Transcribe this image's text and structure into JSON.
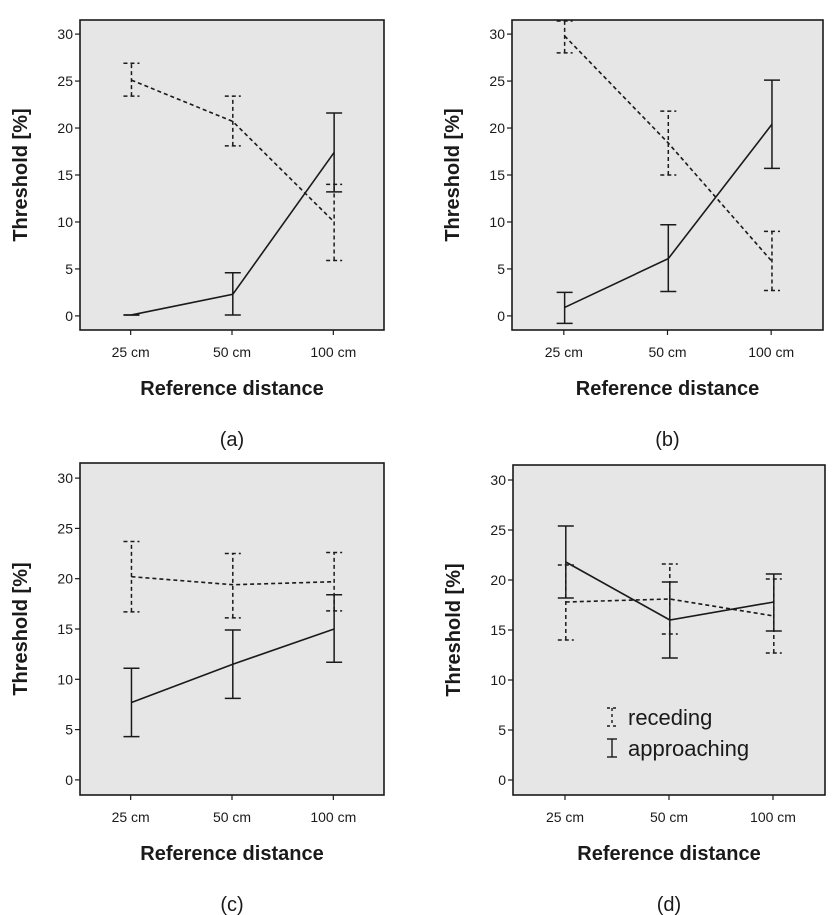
{
  "chart_data": [
    {
      "type": "line",
      "panel_label": "(a)",
      "xlabel": "Reference distance",
      "ylabel": "Threshold [%]",
      "categories": [
        "25 cm",
        "50 cm",
        "100 cm"
      ],
      "yticks": [
        0,
        5,
        10,
        15,
        20,
        25,
        30
      ],
      "ylim": [
        -1.5,
        31.5
      ],
      "grid": false,
      "legend": null,
      "series": [
        {
          "style": "dashed",
          "values": [
            25.1,
            20.7,
            10.0
          ],
          "err_low": [
            23.4,
            18.1,
            5.9
          ],
          "err_high": [
            26.9,
            23.4,
            14.0
          ]
        },
        {
          "style": "solid",
          "values": [
            0.1,
            2.3,
            17.4
          ],
          "err_low": [
            0.1,
            0.1,
            13.2
          ],
          "err_high": [
            0.1,
            4.6,
            21.6
          ]
        }
      ]
    },
    {
      "type": "line",
      "panel_label": "(b)",
      "xlabel": "Reference distance",
      "ylabel": "Threshold [%]",
      "categories": [
        "25 cm",
        "50 cm",
        "100 cm"
      ],
      "yticks": [
        0,
        5,
        10,
        15,
        20,
        25,
        30
      ],
      "ylim": [
        -1.5,
        31.5
      ],
      "grid": false,
      "legend": null,
      "series": [
        {
          "style": "dashed",
          "values": [
            29.8,
            18.4,
            5.8
          ],
          "err_low": [
            28.0,
            15.0,
            2.7
          ],
          "err_high": [
            31.4,
            21.8,
            9.0
          ]
        },
        {
          "style": "solid",
          "values": [
            0.9,
            6.1,
            20.4
          ],
          "err_low": [
            -0.8,
            2.6,
            15.7
          ],
          "err_high": [
            2.5,
            9.7,
            25.1
          ]
        }
      ]
    },
    {
      "type": "line",
      "panel_label": "(c)",
      "xlabel": "Reference distance",
      "ylabel": "Threshold [%]",
      "categories": [
        "25 cm",
        "50 cm",
        "100 cm"
      ],
      "yticks": [
        0,
        5,
        10,
        15,
        20,
        25,
        30
      ],
      "ylim": [
        -1.5,
        31.5
      ],
      "grid": false,
      "legend": null,
      "series": [
        {
          "style": "dashed",
          "values": [
            20.2,
            19.4,
            19.7
          ],
          "err_low": [
            16.7,
            16.1,
            16.8
          ],
          "err_high": [
            23.7,
            22.5,
            22.6
          ]
        },
        {
          "style": "solid",
          "values": [
            7.7,
            11.5,
            15.0
          ],
          "err_low": [
            4.3,
            8.1,
            11.7
          ],
          "err_high": [
            11.1,
            14.9,
            18.4
          ]
        }
      ]
    },
    {
      "type": "line",
      "panel_label": "(d)",
      "xlabel": "Reference distance",
      "ylabel": "Threshold [%]",
      "categories": [
        "25 cm",
        "50 cm",
        "100 cm"
      ],
      "yticks": [
        0,
        5,
        10,
        15,
        20,
        25,
        30
      ],
      "ylim": [
        -1.5,
        31.5
      ],
      "grid": false,
      "legend": "inside-bottom-center",
      "series": [
        {
          "name": "receding",
          "style": "dashed",
          "values": [
            17.8,
            18.1,
            16.4
          ],
          "err_low": [
            14.0,
            14.6,
            12.7
          ],
          "err_high": [
            21.5,
            21.6,
            20.1
          ]
        },
        {
          "name": "approaching",
          "style": "solid",
          "values": [
            21.8,
            16.0,
            17.8
          ],
          "err_low": [
            18.2,
            12.2,
            14.9
          ],
          "err_high": [
            25.4,
            19.8,
            20.6
          ]
        }
      ]
    }
  ]
}
